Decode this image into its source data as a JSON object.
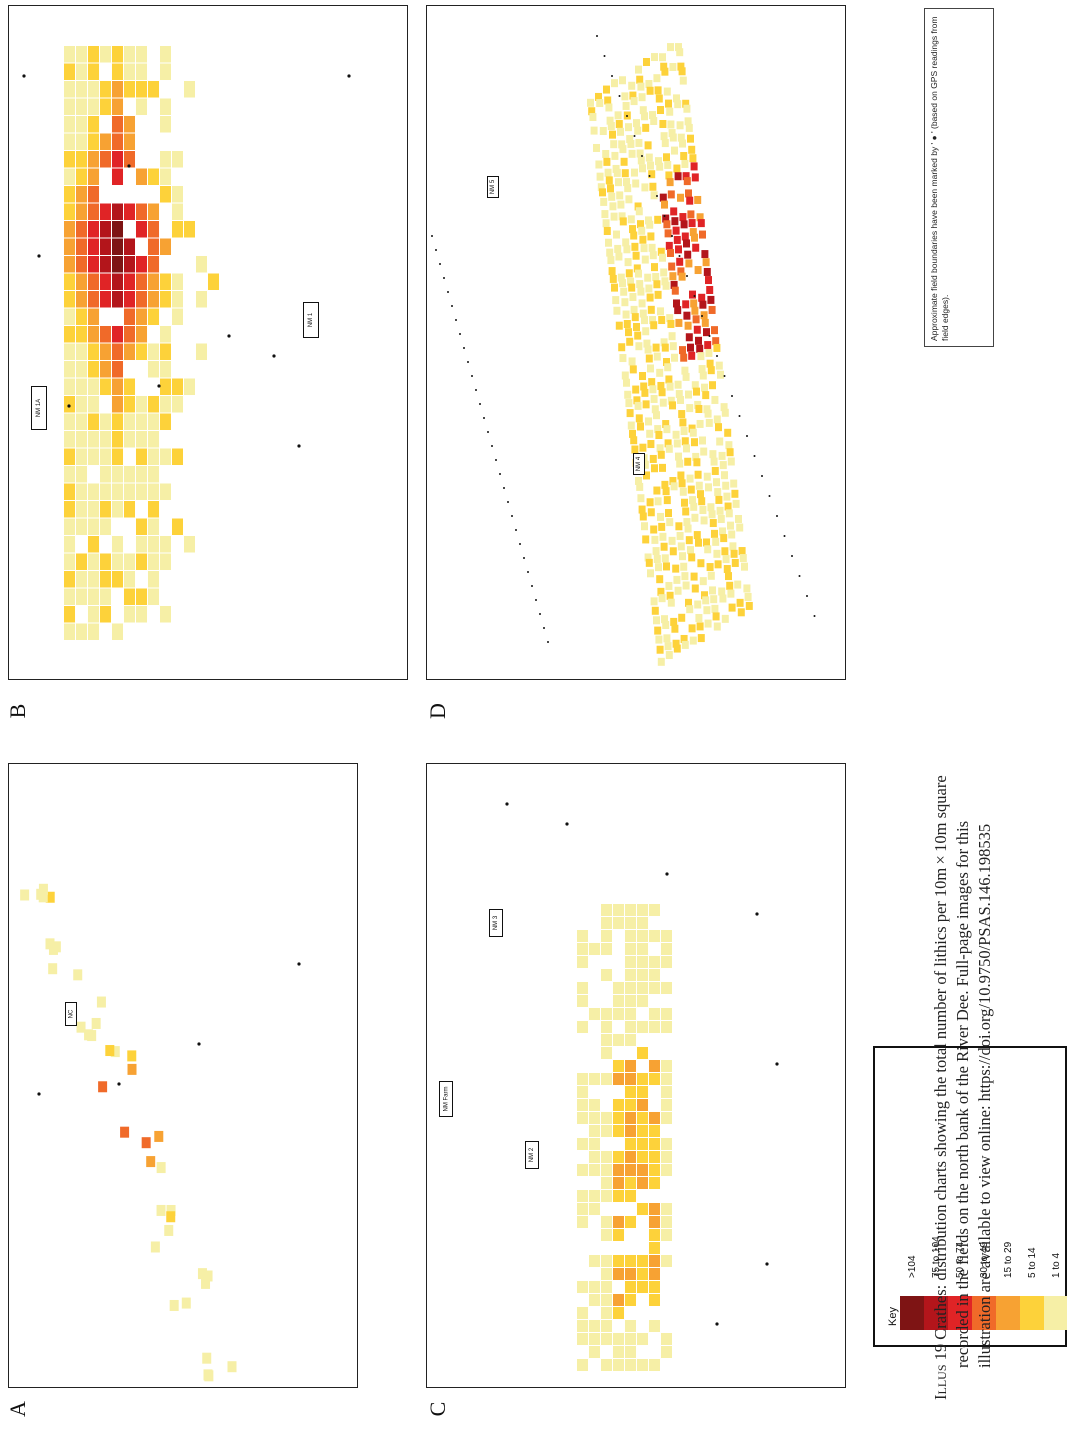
{
  "panels": [
    {
      "id": "A",
      "label": "A"
    },
    {
      "id": "B",
      "label": "B"
    },
    {
      "id": "C",
      "label": "C"
    },
    {
      "id": "D",
      "label": "D"
    }
  ],
  "field_labels": {
    "A_nc": "NC",
    "B_nm1a": "NM 1A",
    "B_nm1": "NM 1",
    "C_nm3": "NM 3",
    "C_nmfarm": "NM Farm",
    "C_nm2": "NM 2",
    "D_nm5": "NM 5",
    "D_nm4": "NM 4"
  },
  "key": {
    "title": "Key",
    "classes": [
      {
        "label": ">104",
        "color": "#7e1414"
      },
      {
        "label": "75 to 104",
        "color": "#b3151b"
      },
      {
        "label": "50 to 74",
        "color": "#e02426"
      },
      {
        "label": "30 to 49",
        "color": "#f06a29"
      },
      {
        "label": "15 to 29",
        "color": "#f7a233"
      },
      {
        "label": "5 to 14",
        "color": "#fdd23a"
      },
      {
        "label": "1 to 4",
        "color": "#f6efa6"
      }
    ]
  },
  "note": "Approximate field boundaries have been marked by ' ● ' (based on GPS readings from field edges).",
  "caption": {
    "lead": "Illus 19",
    "line1": "Crathes: distribution charts showing the total number of lithics per 10m × 10m square",
    "line2": "recorded in the fields on the north bank of the River Dee. Full-page images for this",
    "line3": "illustration are available to view online: https://doi.org/10.9750/PSAS.146.198535"
  }
}
